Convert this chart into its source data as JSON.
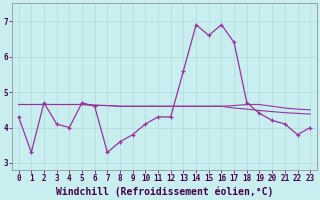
{
  "xlabel": "Windchill (Refroidissement éolien,°C)",
  "background_color": "#c8eef0",
  "grid_color": "#b0d8dc",
  "line_color": "#993399",
  "x_hours": [
    0,
    1,
    2,
    3,
    4,
    5,
    6,
    7,
    8,
    9,
    10,
    11,
    12,
    13,
    14,
    15,
    16,
    17,
    18,
    19,
    20,
    21,
    22,
    23
  ],
  "line_main": [
    4.3,
    3.3,
    4.7,
    4.1,
    4.0,
    4.7,
    4.6,
    3.3,
    3.6,
    3.8,
    4.1,
    4.3,
    4.3,
    5.6,
    6.9,
    6.6,
    6.9,
    6.4,
    4.7,
    4.4,
    4.2,
    4.1,
    3.8,
    4.0
  ],
  "line_sma_flat1": [
    4.65,
    4.65,
    4.65,
    4.65,
    4.65,
    4.65,
    4.63,
    4.62,
    4.6,
    4.6,
    4.6,
    4.6,
    4.6,
    4.6,
    4.6,
    4.6,
    4.6,
    4.62,
    4.65,
    4.65,
    4.6,
    4.55,
    4.52,
    4.5
  ],
  "line_sma_flat2": [
    4.65,
    4.65,
    4.65,
    4.65,
    4.65,
    4.65,
    4.63,
    4.62,
    4.6,
    4.6,
    4.6,
    4.6,
    4.6,
    4.6,
    4.6,
    4.6,
    4.6,
    4.55,
    4.52,
    4.48,
    4.45,
    4.42,
    4.4,
    4.38
  ],
  "ylim": [
    2.8,
    7.5
  ],
  "xlim": [
    -0.5,
    23.5
  ],
  "xtick_labels": [
    "0",
    "1",
    "2",
    "3",
    "4",
    "5",
    "6",
    "7",
    "8",
    "9",
    "10",
    "11",
    "12",
    "13",
    "14",
    "15",
    "16",
    "17",
    "18",
    "19",
    "20",
    "21",
    "22",
    "23"
  ],
  "ytick_values": [
    3,
    4,
    5,
    6,
    7
  ],
  "ytick_labels": [
    "3",
    "4",
    "5",
    "6",
    "7"
  ],
  "font_family": "monospace",
  "label_fontsize": 7,
  "tick_fontsize": 5.5
}
